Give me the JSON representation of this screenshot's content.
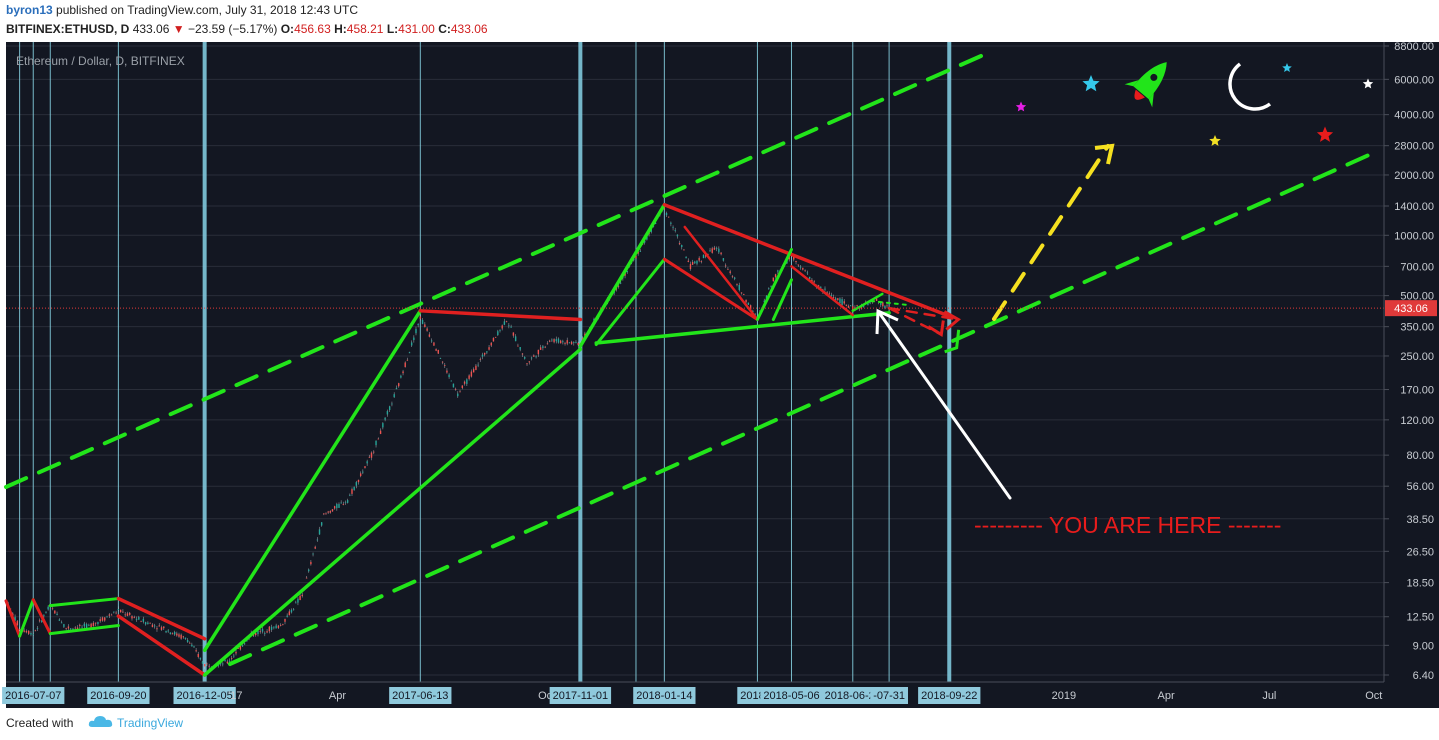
{
  "header": {
    "author": "byron13",
    "published": "published on TradingView.com, July 31, 2018 12:43 UTC",
    "symbol": "BITFINEX:ETHUSD, D",
    "price": "433.06",
    "change": "−23.59 (−5.17%)",
    "o_label": "O:",
    "o_value": "456.63",
    "h_label": "H:",
    "h_value": "458.21",
    "l_label": "L:",
    "l_value": "431.00",
    "c_label": "C:",
    "c_value": "433.06"
  },
  "footer": {
    "created_with": "Created with",
    "brand": "TradingView"
  },
  "chart_data": {
    "type": "line",
    "title": "Ethereum / Dollar, D, BITFINEX",
    "y_scale": "log",
    "ylim": [
      6.4,
      8800
    ],
    "y_ticks": [
      "8800.00",
      "6000.00",
      "4000.00",
      "2800.00",
      "2000.00",
      "1400.00",
      "1000.00",
      "700.00",
      "500.00",
      "350.00",
      "250.00",
      "170.00",
      "120.00",
      "80.00",
      "56.00",
      "38.50",
      "26.50",
      "18.50",
      "12.50",
      "9.00",
      "6.40"
    ],
    "y_tick_values": [
      8800,
      6000,
      4000,
      2800,
      2000,
      1400,
      1000,
      700,
      500,
      350,
      250,
      170,
      120,
      80,
      56,
      38.5,
      26.5,
      18.5,
      12.5,
      9,
      6.4
    ],
    "x_ticks": [
      "2016-07-07",
      "2016-09-20",
      "2016-12-05",
      "'17",
      "Apr",
      "2017-06-13",
      "Oc",
      "2017-11-01",
      "2018-01-14",
      "2018-0",
      "2018-05-06",
      "2018-06-29",
      "-07-31",
      "2018-09-22",
      "2019",
      "Apr",
      "Jul",
      "Oct"
    ],
    "x_tick_dates": [
      "2016-07-07",
      "2016-09-20",
      "2016-12-05",
      "2017-01-01",
      "2017-04-01",
      "2017-06-13",
      "2017-10-01",
      "2017-11-01",
      "2018-01-14",
      "2018-04-06",
      "2018-05-06",
      "2018-06-29",
      "2018-07-31",
      "2018-09-22",
      "2019-01-01",
      "2019-04-01",
      "2019-07-01",
      "2019-10-01"
    ],
    "highlighted_x_ticks": [
      "2016-07-07",
      "2016-09-20",
      "2016-12-05",
      "2017-06-13",
      "2017-11-01",
      "2018-01-14",
      "2018-0",
      "2018-05-06",
      "2018-06-29",
      "-07-31",
      "2018-09-22"
    ],
    "last_price": "433.06",
    "annotation": "--------- YOU ARE HERE -------",
    "price_series": [
      {
        "date": "2016-06-13",
        "close": 15.0
      },
      {
        "date": "2016-06-25",
        "close": 11.0
      },
      {
        "date": "2016-07-07",
        "close": 10.3
      },
      {
        "date": "2016-07-22",
        "close": 14.2
      },
      {
        "date": "2016-08-05",
        "close": 11.0
      },
      {
        "date": "2016-08-25",
        "close": 11.2
      },
      {
        "date": "2016-09-20",
        "close": 13.4
      },
      {
        "date": "2016-10-10",
        "close": 12.0
      },
      {
        "date": "2016-11-01",
        "close": 10.8
      },
      {
        "date": "2016-11-20",
        "close": 9.6
      },
      {
        "date": "2016-12-05",
        "close": 7.2
      },
      {
        "date": "2016-12-25",
        "close": 7.4
      },
      {
        "date": "2017-01-15",
        "close": 10.2
      },
      {
        "date": "2017-02-10",
        "close": 11.3
      },
      {
        "date": "2017-03-01",
        "close": 16.0
      },
      {
        "date": "2017-03-20",
        "close": 40.0
      },
      {
        "date": "2017-04-10",
        "close": 48.0
      },
      {
        "date": "2017-05-01",
        "close": 80.0
      },
      {
        "date": "2017-05-25",
        "close": 180.0
      },
      {
        "date": "2017-06-13",
        "close": 390.0
      },
      {
        "date": "2017-06-25",
        "close": 290.0
      },
      {
        "date": "2017-07-16",
        "close": 160.0
      },
      {
        "date": "2017-08-01",
        "close": 220.0
      },
      {
        "date": "2017-08-28",
        "close": 380.0
      },
      {
        "date": "2017-09-15",
        "close": 230.0
      },
      {
        "date": "2017-10-05",
        "close": 300.0
      },
      {
        "date": "2017-11-01",
        "close": 290.0
      },
      {
        "date": "2017-11-25",
        "close": 470.0
      },
      {
        "date": "2017-12-20",
        "close": 780.0
      },
      {
        "date": "2018-01-14",
        "close": 1380.0
      },
      {
        "date": "2018-02-06",
        "close": 700.0
      },
      {
        "date": "2018-03-01",
        "close": 870.0
      },
      {
        "date": "2018-03-25",
        "close": 500.0
      },
      {
        "date": "2018-04-06",
        "close": 380.0
      },
      {
        "date": "2018-04-20",
        "close": 610.0
      },
      {
        "date": "2018-05-06",
        "close": 800.0
      },
      {
        "date": "2018-05-28",
        "close": 560.0
      },
      {
        "date": "2018-06-29",
        "close": 430.0
      },
      {
        "date": "2018-07-20",
        "close": 470.0
      },
      {
        "date": "2018-07-31",
        "close": 433.06
      }
    ]
  },
  "colors": {
    "background": "#131722",
    "grid": "#2a2e39",
    "green_line": "#22e51a",
    "red_line": "#e02020",
    "yellow_line": "#f5e020",
    "vertical_thick": "#7fc8dc",
    "vertical_thin": "#8ad8e8",
    "axis_bg": "#131722",
    "price_tag": "#e03a3a"
  }
}
